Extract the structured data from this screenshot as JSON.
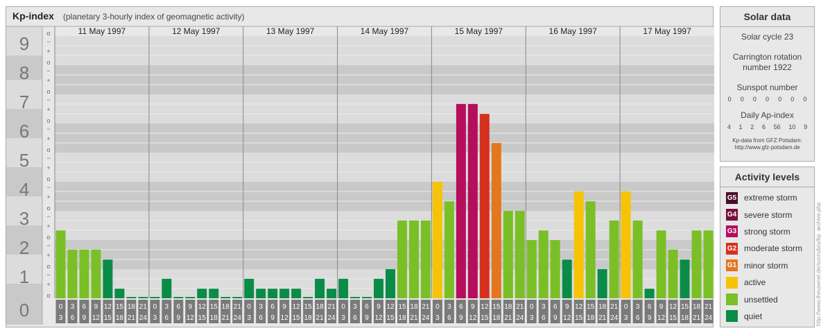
{
  "header": {
    "title": "Kp-index",
    "subtitle": "(planetary 3-hourly index of geomagnetic activity)"
  },
  "chart_data": {
    "type": "bar",
    "ylim": [
      0,
      9
    ],
    "y_ticks": [
      "0",
      "1",
      "2",
      "3",
      "4",
      "5",
      "6",
      "7",
      "8",
      "9"
    ],
    "sub_ticks": [
      "o",
      "+",
      "−"
    ],
    "days": [
      "11 May 1997",
      "12 May 1997",
      "13 May 1997",
      "14 May 1997",
      "15 May 1997",
      "16 May 1997",
      "17 May 1997"
    ],
    "interval_top": [
      "0",
      "3",
      "6",
      "9",
      "12",
      "15",
      "18",
      "21"
    ],
    "interval_bottom": [
      "3",
      "6",
      "9",
      "12",
      "15",
      "18",
      "21",
      "24"
    ],
    "values": [
      [
        2.33,
        1.67,
        1.67,
        1.67,
        1.33,
        0.33,
        0,
        0
      ],
      [
        0,
        0.67,
        0,
        0,
        0.33,
        0.33,
        0,
        0
      ],
      [
        0.67,
        0.33,
        0.33,
        0.33,
        0.33,
        0,
        0.67,
        0.33
      ],
      [
        0.67,
        0,
        0,
        0.67,
        1,
        2.67,
        2.67,
        2.67
      ],
      [
        4,
        3.33,
        6.67,
        6.67,
        6.33,
        5.33,
        3,
        3
      ],
      [
        2,
        2.33,
        2,
        1.33,
        3.67,
        3.33,
        1,
        2.67
      ],
      [
        3.67,
        2.67,
        0.33,
        2.33,
        1.67,
        1.33,
        2.33,
        2.33
      ]
    ],
    "colors": {
      "G5": "#4a0d29",
      "G4": "#7a0f3f",
      "G3": "#b50e5c",
      "G2": "#d6311e",
      "G1": "#e4761d",
      "active": "#f7c307",
      "unsettled": "#7bbf26",
      "quiet": "#0a8c48"
    }
  },
  "solar": {
    "title": "Solar data",
    "cycle": "Solar cycle 23",
    "rotation_line1": "Carrington rotation",
    "rotation_line2": "number 1922",
    "sunspot_label": "Sunspot number",
    "sunspots": [
      "0",
      "0",
      "0",
      "0",
      "0",
      "0",
      "0"
    ],
    "ap_label": "Daily Ap-index",
    "ap": [
      "4",
      "1",
      "2",
      "6",
      "56",
      "10",
      "9"
    ],
    "source_line1": "Kp-data from GFZ Potsdam:",
    "source_line2": "http://www.gfz-potsdam.de"
  },
  "legend": {
    "title": "Activity levels",
    "items": [
      {
        "badge": "G5",
        "label": "extreme storm",
        "color": "#4a0d29"
      },
      {
        "badge": "G4",
        "label": "severe storm",
        "color": "#7a0f3f"
      },
      {
        "badge": "G3",
        "label": "strong storm",
        "color": "#b50e5c"
      },
      {
        "badge": "G2",
        "label": "moderate storm",
        "color": "#d6311e"
      },
      {
        "badge": "G1",
        "label": "minor storm",
        "color": "#e4761d"
      },
      {
        "badge": "",
        "label": "active",
        "color": "#f7c307"
      },
      {
        "badge": "",
        "label": "unsettled",
        "color": "#7bbf26"
      },
      {
        "badge": "",
        "label": "quiet",
        "color": "#0a8c48"
      }
    ]
  },
  "watermark": "http://www.theusenet.de/sunnyboy/kp_archive.php"
}
